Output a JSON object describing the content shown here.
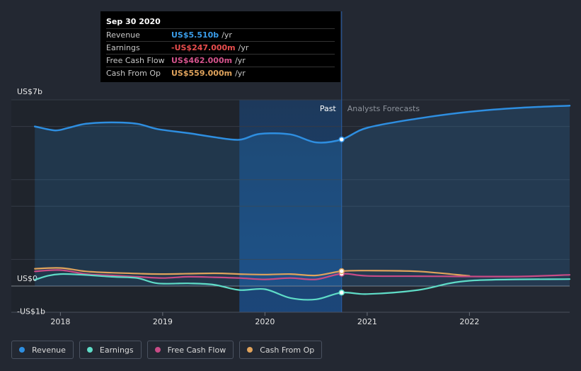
{
  "tooltip": {
    "date": "Sep 30 2020",
    "rows": [
      {
        "label": "Revenue",
        "value": "US$5.510b",
        "unit": "/yr",
        "color": "#3a9ce8"
      },
      {
        "label": "Earnings",
        "value": "-US$247.000m",
        "unit": "/yr",
        "color": "#e84d4d"
      },
      {
        "label": "Free Cash Flow",
        "value": "US$462.000m",
        "unit": "/yr",
        "color": "#d4538c"
      },
      {
        "label": "Cash From Op",
        "value": "US$559.000m",
        "unit": "/yr",
        "color": "#e0a35c"
      }
    ]
  },
  "labels": {
    "past": "Past",
    "forecast": "Analysts Forecasts"
  },
  "legend": [
    {
      "label": "Revenue",
      "color": "#2e8ee0"
    },
    {
      "label": "Earnings",
      "color": "#5fdcc7"
    },
    {
      "label": "Free Cash Flow",
      "color": "#c84b86"
    },
    {
      "label": "Cash From Op",
      "color": "#e0a35c"
    }
  ],
  "chart_data": {
    "type": "line",
    "y_ticks": [
      {
        "value": 7,
        "label": "US$7b"
      },
      {
        "value": 0,
        "label": "US$0"
      },
      {
        "value": -1,
        "label": "-US$1b"
      }
    ],
    "ylim": [
      -1,
      7
    ],
    "xlim": [
      2017.52,
      2022.98
    ],
    "x_ticks": [
      2018,
      2019,
      2020,
      2021,
      2022
    ],
    "past_end": 2020.75,
    "highlight_start": 2019.75,
    "series": [
      {
        "name": "Revenue",
        "color": "#2e8ee0",
        "points": [
          [
            2017.75,
            6.0
          ],
          [
            2017.95,
            5.85
          ],
          [
            2018.08,
            5.95
          ],
          [
            2018.25,
            6.1
          ],
          [
            2018.5,
            6.15
          ],
          [
            2018.75,
            6.1
          ],
          [
            2018.95,
            5.9
          ],
          [
            2019.25,
            5.75
          ],
          [
            2019.5,
            5.6
          ],
          [
            2019.75,
            5.5
          ],
          [
            2019.95,
            5.72
          ],
          [
            2020.25,
            5.7
          ],
          [
            2020.5,
            5.4
          ],
          [
            2020.75,
            5.51
          ],
          [
            2021.0,
            5.95
          ],
          [
            2021.5,
            6.3
          ],
          [
            2022.0,
            6.55
          ],
          [
            2022.5,
            6.7
          ],
          [
            2022.98,
            6.78
          ]
        ]
      },
      {
        "name": "Earnings",
        "color": "#5fdcc7",
        "points": [
          [
            2017.75,
            0.24
          ],
          [
            2018.0,
            0.45
          ],
          [
            2018.5,
            0.35
          ],
          [
            2018.75,
            0.3
          ],
          [
            2018.95,
            0.1
          ],
          [
            2019.25,
            0.1
          ],
          [
            2019.5,
            0.05
          ],
          [
            2019.75,
            -0.15
          ],
          [
            2020.0,
            -0.12
          ],
          [
            2020.25,
            -0.45
          ],
          [
            2020.5,
            -0.5
          ],
          [
            2020.75,
            -0.247
          ],
          [
            2021.0,
            -0.3
          ],
          [
            2021.5,
            -0.15
          ],
          [
            2022.0,
            0.2
          ],
          [
            2022.98,
            0.26
          ]
        ]
      },
      {
        "name": "Free Cash Flow",
        "color": "#c84b86",
        "points": [
          [
            2017.75,
            0.55
          ],
          [
            2018.0,
            0.6
          ],
          [
            2018.25,
            0.45
          ],
          [
            2018.5,
            0.4
          ],
          [
            2018.75,
            0.35
          ],
          [
            2019.0,
            0.3
          ],
          [
            2019.25,
            0.35
          ],
          [
            2019.5,
            0.33
          ],
          [
            2019.75,
            0.3
          ],
          [
            2020.0,
            0.25
          ],
          [
            2020.25,
            0.3
          ],
          [
            2020.5,
            0.25
          ],
          [
            2020.75,
            0.462
          ],
          [
            2021.0,
            0.38
          ],
          [
            2021.5,
            0.37
          ],
          [
            2022.0,
            0.36
          ],
          [
            2022.5,
            0.36
          ],
          [
            2022.98,
            0.42
          ]
        ]
      },
      {
        "name": "Cash From Op",
        "color": "#e0a35c",
        "points": [
          [
            2017.75,
            0.65
          ],
          [
            2018.0,
            0.68
          ],
          [
            2018.25,
            0.55
          ],
          [
            2018.5,
            0.5
          ],
          [
            2018.75,
            0.47
          ],
          [
            2019.0,
            0.45
          ],
          [
            2019.5,
            0.48
          ],
          [
            2019.75,
            0.45
          ],
          [
            2020.0,
            0.43
          ],
          [
            2020.25,
            0.45
          ],
          [
            2020.5,
            0.4
          ],
          [
            2020.75,
            0.559
          ],
          [
            2021.0,
            0.58
          ],
          [
            2021.5,
            0.55
          ],
          [
            2022.0,
            0.38
          ]
        ]
      }
    ]
  }
}
